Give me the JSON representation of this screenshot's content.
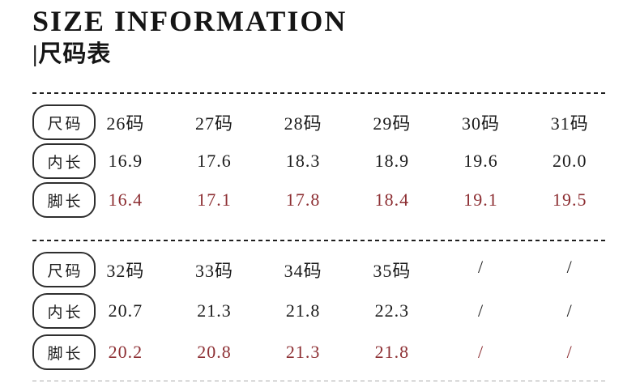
{
  "header": {
    "title": "SIZE INFORMATION",
    "subtitle": "|尺码表"
  },
  "colors": {
    "text": "#1c1c1c",
    "highlight_red": "#8d2f33",
    "pill_border": "#2e2e2e",
    "divider": "#1f1f1f"
  },
  "tables": [
    {
      "rows": [
        {
          "label": "尺码",
          "highlight": false,
          "values": [
            "26码",
            "27码",
            "28码",
            "29码",
            "30码",
            "31码"
          ]
        },
        {
          "label": "内长",
          "highlight": false,
          "values": [
            "16.9",
            "17.6",
            "18.3",
            "18.9",
            "19.6",
            "20.0"
          ]
        },
        {
          "label": "脚长",
          "highlight": true,
          "values": [
            "16.4",
            "17.1",
            "17.8",
            "18.4",
            "19.1",
            "19.5"
          ]
        }
      ]
    },
    {
      "rows": [
        {
          "label": "尺码",
          "highlight": false,
          "values": [
            "32码",
            "33码",
            "34码",
            "35码",
            "/",
            "/"
          ]
        },
        {
          "label": "内长",
          "highlight": false,
          "values": [
            "20.7",
            "21.3",
            "21.8",
            "22.3",
            "/",
            "/"
          ]
        },
        {
          "label": "脚长",
          "highlight": true,
          "values": [
            "20.2",
            "20.8",
            "21.3",
            "21.8",
            "/",
            "/"
          ]
        }
      ]
    }
  ]
}
